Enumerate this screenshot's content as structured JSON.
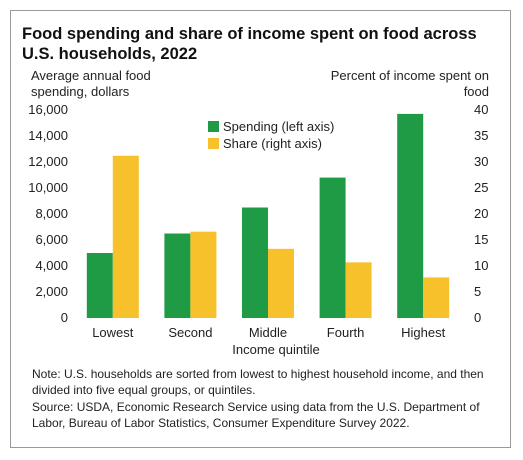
{
  "chart_data": {
    "type": "bar",
    "title": "Food spending and share of income spent on food across U.S. households, 2022",
    "xlabel": "Income quintile",
    "ylabel_left": "Average annual food spending, dollars",
    "ylabel_right": "Percent of income spent on food",
    "categories": [
      "Lowest",
      "Second",
      "Middle",
      "Fourth",
      "Highest"
    ],
    "series": [
      {
        "name": "Spending (left axis)",
        "axis": "left",
        "color": "#1f9b45",
        "values": [
          5000,
          6500,
          8500,
          10800,
          15700
        ]
      },
      {
        "name": "Share (right axis)",
        "axis": "right",
        "color": "#f7c12b",
        "values": [
          31.2,
          16.6,
          13.3,
          10.7,
          7.8
        ]
      }
    ],
    "ylim_left": [
      0,
      16000
    ],
    "ylim_right": [
      0,
      40
    ],
    "yticks_left": [
      "0",
      "2,000",
      "4,000",
      "6,000",
      "8,000",
      "10,000",
      "12,000",
      "14,000",
      "16,000"
    ],
    "yticks_right": [
      "0",
      "5",
      "10",
      "15",
      "20",
      "25",
      "30",
      "35",
      "40"
    ],
    "grid": false,
    "legend_position": "top-center"
  },
  "note": "Note: U.S. households are sorted from lowest to highest household income, and then divided into five equal groups, or quintiles.",
  "source": "Source: USDA, Economic Research Service using data from the U.S. Department of Labor, Bureau of Labor Statistics, Consumer Expenditure Survey 2022."
}
